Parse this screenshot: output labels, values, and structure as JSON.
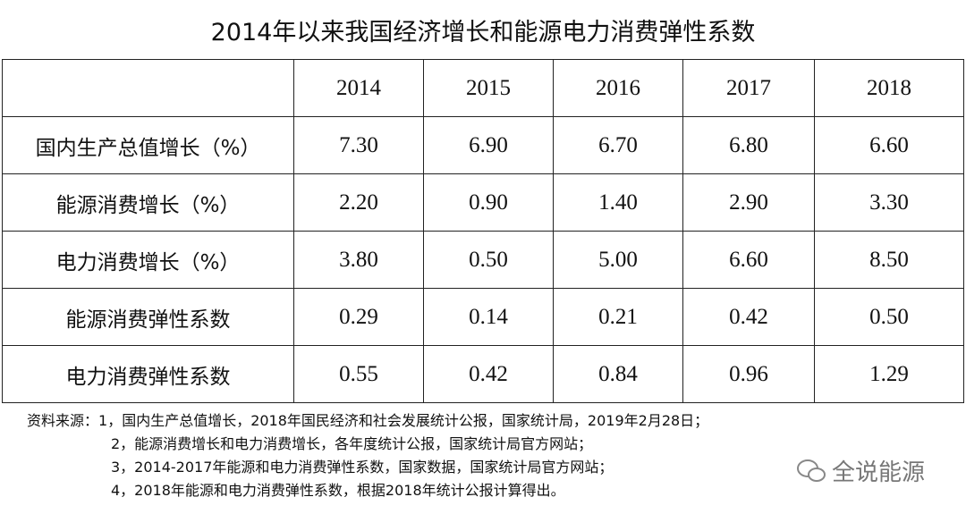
{
  "title": "2014年以来我国经济增长和能源电力消费弹性系数",
  "table": {
    "header": [
      "",
      "2014",
      "2015",
      "2016",
      "2017",
      "2018"
    ],
    "rows": [
      [
        "国内生产总值增长（%）",
        "7.30",
        "6.90",
        "6.70",
        "6.80",
        "6.60"
      ],
      [
        "能源消费增长（%）",
        "2.20",
        "0.90",
        "1.40",
        "2.90",
        "3.30"
      ],
      [
        "电力消费增长（%）",
        "3.80",
        "0.50",
        "5.00",
        "6.60",
        "8.50"
      ],
      [
        "能源消费弹性系数",
        "0.29",
        "0.14",
        "0.21",
        "0.42",
        "0.50"
      ],
      [
        "电力消费弹性系数",
        "0.55",
        "0.42",
        "0.84",
        "0.96",
        "1.29"
      ]
    ]
  },
  "notes": {
    "prefix": "资料来源：",
    "items": [
      "1，国内生产总值增长，2018年国民经济和社会发展统计公报，国家统计局，2019年2月28日；",
      "2，能源消费增长和电力消费增长，各年度统计公报，国家统计局官方网站；",
      "3，2014-2017年能源和电力消费弹性系数，国家数据，国家统计局官方网站；",
      "4，2018年能源和电力消费弹性系数，根据2018年统计公报计算得出。"
    ]
  },
  "watermark": "全说能源"
}
